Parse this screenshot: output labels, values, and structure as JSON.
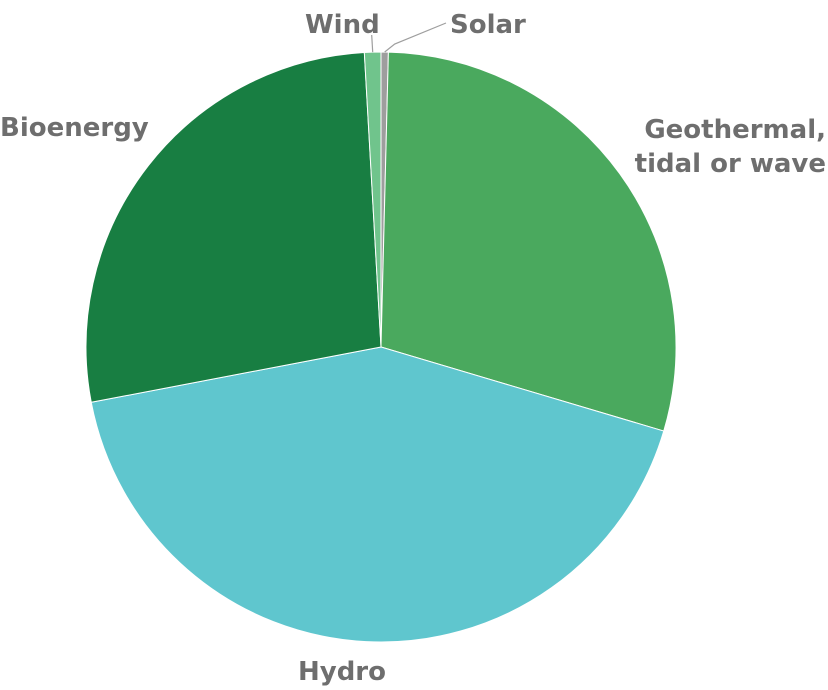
{
  "chart_data": {
    "type": "pie",
    "title": "",
    "unit": "%",
    "start_angle_deg": -90,
    "direction": "clockwise",
    "slices": [
      {
        "label": [
          "Solar"
        ],
        "value": 0.4,
        "color": "#9e9e9e",
        "callout": true
      },
      {
        "label": [
          "Geothermal,",
          "tidal or wave"
        ],
        "value": 29.2,
        "color": "#4aa95e"
      },
      {
        "label": [
          "Hydro"
        ],
        "value": 42.4,
        "color": "#5fc6ce"
      },
      {
        "label": [
          "Bioenergy"
        ],
        "value": 27.1,
        "color": "#187e42"
      },
      {
        "label": [
          "Wind"
        ],
        "value": 0.9,
        "color": "#70c48c",
        "callout": true
      }
    ]
  }
}
